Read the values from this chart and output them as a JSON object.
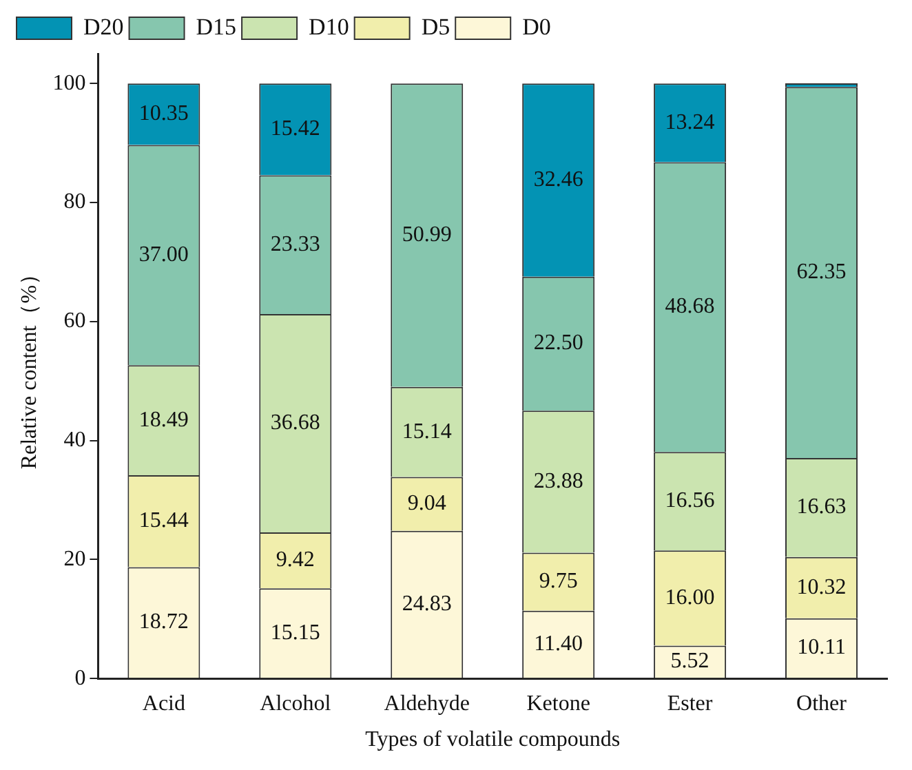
{
  "chart_data": {
    "type": "bar",
    "stacked": true,
    "xlabel": "Types of volatile compounds",
    "ylabel": "Relative content（%）",
    "categories": [
      "Acid",
      "Alcohol",
      "Aldehyde",
      "Ketone",
      "Ester",
      "Other"
    ],
    "ylim": [
      0,
      105
    ],
    "yticks": [
      0,
      20,
      40,
      60,
      80,
      100
    ],
    "grid": false,
    "legend": "top",
    "series": [
      {
        "name": "D0",
        "color": "#fdf7d8",
        "values": [
          18.72,
          15.15,
          24.83,
          11.4,
          5.52,
          10.11
        ],
        "value_labels": [
          "18.72",
          "15.15",
          "24.83",
          "11.40",
          "5.52",
          "10.11"
        ]
      },
      {
        "name": "D5",
        "color": "#f1eeac",
        "values": [
          15.44,
          9.42,
          9.04,
          9.75,
          16.0,
          10.32
        ],
        "value_labels": [
          "15.44",
          "9.42",
          "9.04",
          "9.75",
          "16.00",
          "10.32"
        ]
      },
      {
        "name": "D10",
        "color": "#cbe4b0",
        "values": [
          18.49,
          36.68,
          15.14,
          23.88,
          16.56,
          16.63
        ],
        "value_labels": [
          "18.49",
          "36.68",
          "15.14",
          "23.88",
          "16.56",
          "16.63"
        ]
      },
      {
        "name": "D15",
        "color": "#86c6ae",
        "values": [
          37.0,
          23.33,
          50.99,
          22.5,
          48.68,
          62.35
        ],
        "value_labels": [
          "37.00",
          "23.33",
          "50.99",
          "22.50",
          "48.68",
          "62.35"
        ]
      },
      {
        "name": "D20",
        "color": "#0393b4",
        "values": [
          10.35,
          15.42,
          null,
          32.46,
          13.24,
          0.6
        ],
        "value_labels": [
          "10.35",
          "15.42",
          null,
          "32.46",
          "13.24",
          null
        ]
      }
    ]
  }
}
